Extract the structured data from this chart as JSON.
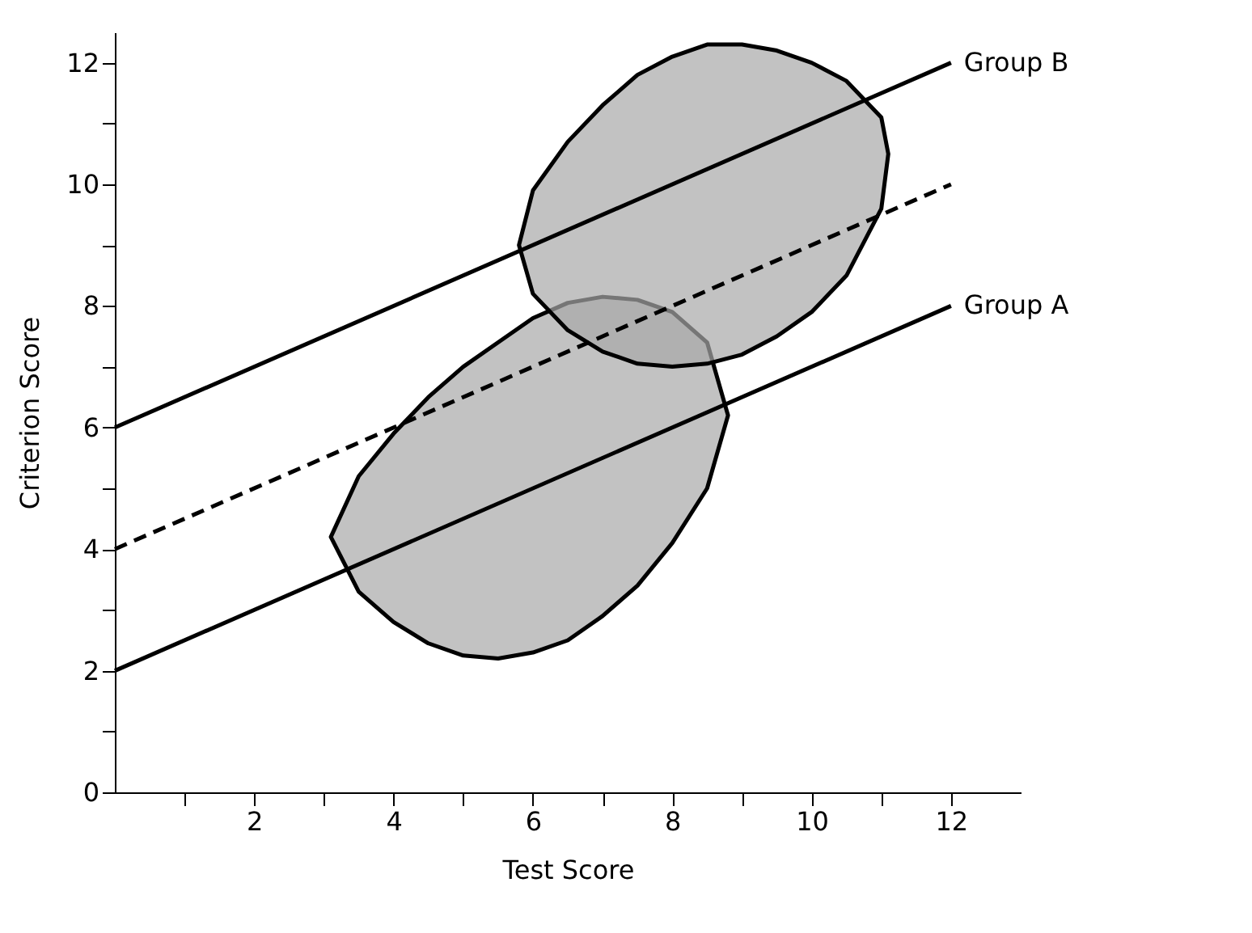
{
  "chart_data": {
    "type": "line",
    "xlabel": "Test Score",
    "ylabel": "Criterion Score",
    "xlim": [
      0,
      13
    ],
    "ylim": [
      0,
      12.5
    ],
    "xticks": [
      {
        "value": 1,
        "label": null
      },
      2,
      {
        "value": 3,
        "label": null
      },
      4,
      {
        "value": 5,
        "label": null
      },
      6,
      {
        "value": 7,
        "label": null
      },
      8,
      {
        "value": 9,
        "label": null
      },
      10,
      {
        "value": 11,
        "label": null
      },
      12
    ],
    "yticks": [
      0,
      {
        "value": 1,
        "label": null
      },
      2,
      {
        "value": 3,
        "label": null
      },
      4,
      {
        "value": 5,
        "label": null
      },
      6,
      {
        "value": 7,
        "label": null
      },
      8,
      {
        "value": 9,
        "label": null
      },
      10,
      {
        "value": 11,
        "label": null
      },
      12
    ],
    "grid": false,
    "legend": false,
    "series": [
      {
        "type": "area",
        "color": "#a8a8a8",
        "x": [
          3.1,
          3.5,
          4,
          4.5,
          5,
          5.5,
          6,
          6.5,
          7,
          7.5,
          8,
          8.5,
          8.8,
          8.5,
          8,
          7.5,
          7,
          6.5,
          6,
          5.5,
          5,
          4.5,
          4,
          3.5,
          3.1
        ],
        "values": [
          4.2,
          5.2,
          5.9,
          6.5,
          7.0,
          7.4,
          7.8,
          8.05,
          8.15,
          8.1,
          7.9,
          7.4,
          6.2,
          5.0,
          4.1,
          3.4,
          2.9,
          2.5,
          2.3,
          2.2,
          2.25,
          2.45,
          2.8,
          3.3,
          4.2
        ]
      },
      {
        "type": "area",
        "color": "#a8a8a8",
        "x": [
          5.8,
          6,
          6.5,
          7,
          7.5,
          8,
          8.5,
          9,
          9.5,
          10,
          10.5,
          11,
          11.1,
          11,
          10.5,
          10,
          9.5,
          9,
          8.5,
          8,
          7.5,
          7,
          6.5,
          6,
          5.8
        ],
        "values": [
          9.0,
          9.9,
          10.7,
          11.3,
          11.8,
          12.1,
          12.3,
          12.3,
          12.2,
          12.0,
          11.7,
          11.1,
          10.5,
          9.6,
          8.5,
          7.9,
          7.5,
          7.2,
          7.05,
          7.0,
          7.05,
          7.25,
          7.6,
          8.2,
          9.0
        ]
      },
      {
        "name": "Group B",
        "color": "#000000",
        "x": [
          0,
          12
        ],
        "values": [
          6,
          12
        ],
        "line_style": "solid"
      },
      {
        "color": "#000000",
        "x": [
          0,
          12
        ],
        "values": [
          4,
          10
        ],
        "line_style": "dashed"
      },
      {
        "name": "Group A",
        "color": "#000000",
        "x": [
          0,
          12
        ],
        "values": [
          2,
          8
        ],
        "line_style": "solid"
      }
    ]
  }
}
